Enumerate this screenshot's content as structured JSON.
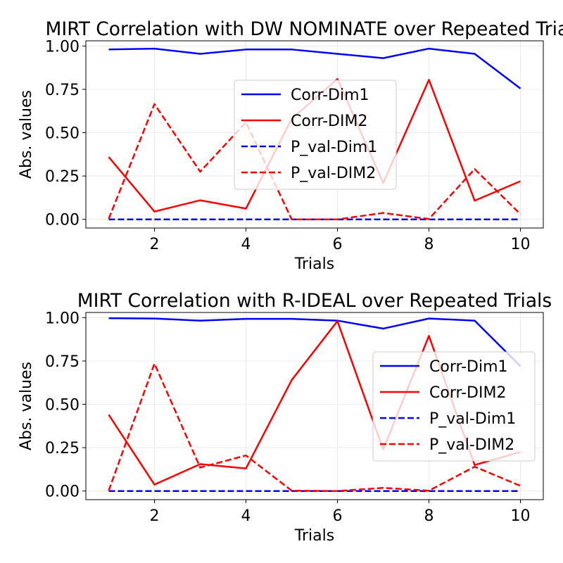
{
  "chart_data": [
    {
      "type": "line",
      "title": "MIRT Correlation with DW NOMINATE over Repeated Trials",
      "xlabel": "Trials",
      "ylabel": "Abs. values",
      "xlim": [
        0.5,
        10.5
      ],
      "ylim": [
        -0.05,
        1.03
      ],
      "x": [
        1,
        2,
        3,
        4,
        5,
        6,
        7,
        8,
        9,
        10
      ],
      "xticks": [
        2,
        4,
        6,
        8,
        10
      ],
      "yticks": [
        0.0,
        0.25,
        0.5,
        0.75,
        1.0
      ],
      "ytick_labels": [
        "0.00",
        "0.25",
        "0.50",
        "0.75",
        "1.00"
      ],
      "grid": true,
      "legend_position": "center-right",
      "series": [
        {
          "name": "Corr-Dim1",
          "color": "#0000ff",
          "dash": "solid",
          "values": [
            0.98,
            0.985,
            0.955,
            0.98,
            0.98,
            0.955,
            0.93,
            0.985,
            0.955,
            0.755
          ]
        },
        {
          "name": "Corr-DIM2",
          "color": "#ff0000",
          "dash": "solid",
          "values": [
            0.36,
            0.045,
            0.11,
            0.062,
            0.58,
            0.81,
            0.21,
            0.805,
            0.108,
            0.22
          ]
        },
        {
          "name": "P_val-Dim1",
          "color": "#0000ff",
          "dash": "dashed",
          "values": [
            0.0,
            0.0,
            0.0,
            0.0,
            0.0,
            0.0,
            0.0,
            0.0,
            0.0,
            0.0
          ]
        },
        {
          "name": "P_val-DIM2",
          "color": "#ff0000",
          "dash": "dashed",
          "values": [
            0.003,
            0.665,
            0.275,
            0.56,
            0.0,
            0.0,
            0.037,
            0.002,
            0.29,
            0.03
          ]
        }
      ]
    },
    {
      "type": "line",
      "title": "MIRT Correlation with R-IDEAL over Repeated Trials",
      "xlabel": "Trials",
      "ylabel": "Abs. values",
      "xlim": [
        0.5,
        10.5
      ],
      "ylim": [
        -0.05,
        1.03
      ],
      "x": [
        1,
        2,
        3,
        4,
        5,
        6,
        7,
        8,
        9,
        10
      ],
      "xticks": [
        2,
        4,
        6,
        8,
        10
      ],
      "yticks": [
        0.0,
        0.25,
        0.5,
        0.75,
        1.0
      ],
      "ytick_labels": [
        "0.00",
        "0.25",
        "0.50",
        "0.75",
        "1.00"
      ],
      "grid": true,
      "legend_position": "center-right",
      "series": [
        {
          "name": "Corr-Dim1",
          "color": "#0000ff",
          "dash": "solid",
          "values": [
            0.997,
            0.995,
            0.983,
            0.993,
            0.993,
            0.983,
            0.937,
            0.995,
            0.983,
            0.72
          ]
        },
        {
          "name": "Corr-DIM2",
          "color": "#ff0000",
          "dash": "solid",
          "values": [
            0.44,
            0.037,
            0.155,
            0.13,
            0.64,
            0.98,
            0.24,
            0.895,
            0.15,
            0.225
          ]
        },
        {
          "name": "P_val-Dim1",
          "color": "#0000ff",
          "dash": "dashed",
          "values": [
            0.0,
            0.0,
            0.0,
            0.0,
            0.0,
            0.0,
            0.0,
            0.0,
            0.0,
            0.0
          ]
        },
        {
          "name": "P_val-DIM2",
          "color": "#ff0000",
          "dash": "dashed",
          "values": [
            0.002,
            0.735,
            0.135,
            0.205,
            0.002,
            0.0,
            0.018,
            0.002,
            0.14,
            0.03
          ]
        }
      ]
    }
  ]
}
